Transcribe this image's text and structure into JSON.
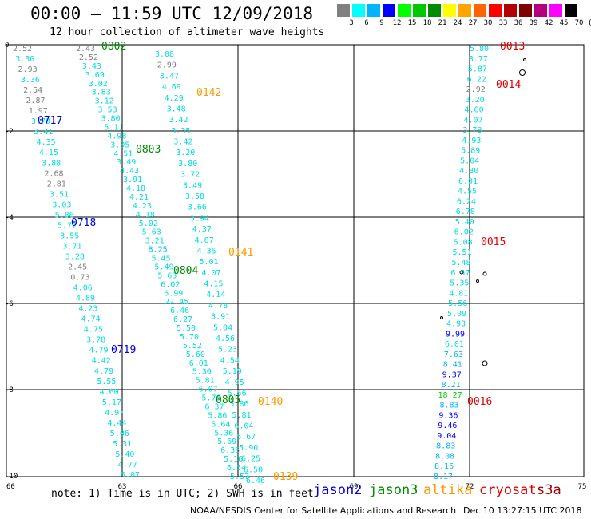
{
  "title": "00:00 — 11:59 UTC 12/09/2018",
  "subtitle": "12 hour collection of altimeter wave heights",
  "scale": {
    "colors": [
      "#808080",
      "#00ffff",
      "#00b4ff",
      "#0000ff",
      "#00ff00",
      "#00c800",
      "#008c00",
      "#ffff00",
      "#ffa500",
      "#ff6400",
      "#ff0000",
      "#b40000",
      "#800000",
      "#b4007c",
      "#ff00ff",
      "#000000"
    ],
    "labels": [
      "3",
      "6",
      "9",
      "12",
      "15",
      "18",
      "21",
      "24",
      "27",
      "30",
      "33",
      "36",
      "39",
      "42",
      "45",
      "70",
      "(ft)"
    ]
  },
  "map": {
    "lon_ticks": [
      "60",
      "63",
      "66",
      "69",
      "72",
      "75"
    ],
    "lat_ticks": [
      "0",
      "-2",
      "-4",
      "-6",
      "-8",
      "-10"
    ]
  },
  "note": "note: 1) Time is in UTC; 2) SWH is in feet",
  "satellites": [
    {
      "name": "jason2",
      "color": "#0000dd"
    },
    {
      "name": "jason3",
      "color": "#008c00"
    },
    {
      "name": "altika",
      "color": "#ff9900"
    },
    {
      "name": "cryosat",
      "color": "#e00000"
    },
    {
      "name": "s3a",
      "color": "#a00000"
    }
  ],
  "footer": {
    "credit": "NOAA/NESDIS Center for Satellite Applications and Research",
    "timestamp": "Dec 10 13:27:15 UTC 2018"
  },
  "pass_labels": [
    {
      "text": "0802",
      "color": "#008c00"
    },
    {
      "text": "0013",
      "color": "#e00000"
    },
    {
      "text": "0142",
      "color": "#ff9900"
    },
    {
      "text": "0014",
      "color": "#e00000"
    },
    {
      "text": "0717",
      "color": "#0000dd"
    },
    {
      "text": "0803",
      "color": "#008c00"
    },
    {
      "text": "0718",
      "color": "#0000dd"
    },
    {
      "text": "0015",
      "color": "#e00000"
    },
    {
      "text": "0141",
      "color": "#ff9900"
    },
    {
      "text": "0804",
      "color": "#008c00"
    },
    {
      "text": "0719",
      "color": "#0000dd"
    },
    {
      "text": "0805",
      "color": "#008c00"
    },
    {
      "text": "0140",
      "color": "#ff9900"
    },
    {
      "text": "0016",
      "color": "#e00000"
    },
    {
      "text": "0139",
      "color": "#ff9900"
    }
  ],
  "tracks": [
    {
      "name": "track-0717",
      "color": "#00dddd",
      "values": [
        "2.43",
        "2.52",
        "3.43",
        "3.69",
        "3.02",
        "3.83",
        "3.12",
        "3.53",
        "3.80",
        "5.11",
        "4.98",
        "3.05",
        "4.51",
        "3.49",
        "4.43",
        "3.91",
        "4.18",
        "4.21",
        "4.23",
        "4.18",
        "5.02",
        "5.63",
        "3.21",
        "8.25",
        "5.45",
        "5.49",
        "5.63",
        "6.02",
        "6.99",
        "22.45",
        "6.46",
        "6.27",
        "5.50",
        "5.70",
        "5.52",
        "5.60",
        "6.01",
        "5.30",
        "5.81",
        "6.07",
        "5.76",
        "6.37",
        "5.86",
        "5.64",
        "5.36",
        "5.69",
        "6.36",
        "5.16",
        "6.54",
        "5.57"
      ]
    },
    {
      "name": "track-0802",
      "color": "#00dddd",
      "values": [
        "3.08",
        "2.99",
        "3.47",
        "4.69",
        "4.29",
        "3.48",
        "3.42",
        "3.35",
        "3.42",
        "3.20",
        "3.80",
        "3.72",
        "3.49",
        "3.58",
        "3.66",
        "3.94",
        "4.37",
        "4.07",
        "4.35",
        "5.01",
        "4.07",
        "4.15",
        "4.14",
        "4.78",
        "3.91",
        "5.04",
        "4.56",
        "5.23",
        "4.54",
        "5.19",
        "4.95",
        "5.56",
        "5.86",
        "5.81",
        "6.04",
        "5.67",
        "5.90",
        "6.25",
        "6.50",
        "6.46"
      ]
    },
    {
      "name": "track-0717b",
      "color": "#00dddd",
      "values": [
        "2.52",
        "3.30",
        "2.93",
        "3.36",
        "2.54",
        "2.87",
        "1.97",
        "3.79",
        "3.41",
        "4.35",
        "4.15",
        "3.88",
        "2.68",
        "2.81",
        "3.51",
        "3.03",
        "5.86",
        "5.77",
        "3.55",
        "3.71",
        "3.28",
        "2.45",
        "0.73",
        "4.06",
        "4.89",
        "4.23",
        "4.74",
        "4.75",
        "3.78",
        "4.79",
        "4.42",
        "4.79",
        "5.55",
        "4.60",
        "5.17",
        "4.97",
        "4.44",
        "5.06",
        "5.31",
        "5.40",
        "4.77",
        "5.07"
      ]
    },
    {
      "name": "track-0013",
      "color": "#00dddd",
      "values": [
        "5.80",
        "3.77",
        "5.87",
        "6.22",
        "2.92",
        "3.20",
        "4.60",
        "4.07",
        "3.78",
        "4.93",
        "5.89",
        "5.04",
        "4.80",
        "6.01",
        "4.55",
        "6.24",
        "6.78",
        "5.40",
        "6.02",
        "5.08",
        "5.51",
        "5.48",
        "6.57",
        "5.35",
        "4.81",
        "5.56",
        "5.09",
        "4.93",
        "9.99",
        "6.01",
        "7.63",
        "8.41",
        "9.37",
        "8.21",
        "18.27",
        "8.83",
        "9.36",
        "9.46",
        "9.04",
        "8.83",
        "8.08",
        "8.16",
        "8.17"
      ]
    }
  ]
}
